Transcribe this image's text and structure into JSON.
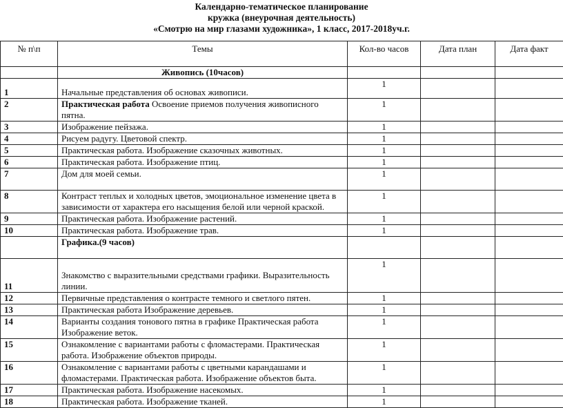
{
  "document": {
    "title_lines": [
      "Календарно-тематическое планирование",
      "кружка (внеурочная деятельность)",
      "«Смотрю на мир глазами художника», 1 класс, 2017-2018уч.г."
    ],
    "table": {
      "headers": {
        "num": "№ п\\п",
        "topic": "Темы",
        "hours": "Кол-во часов",
        "date_plan": "Дата план",
        "date_fact": "Дата факт"
      },
      "rows": [
        {
          "type": "section",
          "topic": "Живопись (10часов)"
        },
        {
          "num": "1",
          "topic": "Начальные представления об основах живописи.",
          "hours": "1"
        },
        {
          "num": "2",
          "topic_bold": "Практическая работа",
          "topic": " Освоение приемов получения живописного пятна.",
          "hours": "1"
        },
        {
          "num": "3",
          "topic": "Изображение пейзажа.",
          "hours": "1"
        },
        {
          "num": "4",
          "topic": "Рисуем радугу. Цветовой спектр.",
          "hours": "1"
        },
        {
          "num": "5",
          "topic": "Практическая работа. Изображение сказочных животных.",
          "hours": "1"
        },
        {
          "num": "6",
          "topic": "Практическая работа. Изображение птиц.",
          "hours": "1"
        },
        {
          "num": "7",
          "topic": "Дом для моей семьи.",
          "hours": "1"
        },
        {
          "num": "8",
          "topic": "Контраст теплых и холодных цветов, эмоциональное изменение цвета в зависимости от характера его насыщения белой или черной краской.",
          "hours": "1"
        },
        {
          "num": "9",
          "topic": "Практическая работа. Изображение растений.",
          "hours": "1"
        },
        {
          "num": "10",
          "topic": "Практическая работа. Изображение трав.",
          "hours": "1"
        },
        {
          "type": "section",
          "topic": "Графика.(9 часов)"
        },
        {
          "num": "11",
          "topic": "Знакомство с выразительными средствами графики. Выразительность линии.",
          "hours": "1"
        },
        {
          "num": "12",
          "topic": "Первичные представления о контрасте темного и светлого пятен.",
          "hours": "1"
        },
        {
          "num": "13",
          "topic": "Практическая работа Изображение деревьев.",
          "hours": "1"
        },
        {
          "num": "14",
          "topic": "Варианты создания тонового пятна в графике Практическая работа Изображение веток.",
          "hours": "1"
        },
        {
          "num": "15",
          "topic": "Ознакомление с вариантами работы с фломастерами. Практическая работа. Изображение объектов природы.",
          "hours": "1"
        },
        {
          "num": "16",
          "topic": "Ознакомление с вариантами работы с цветными карандашами и фломастерами. Практическая работа. Изображение объектов быта.",
          "hours": "1"
        },
        {
          "num": "17",
          "topic": "Практическая работа. Изображение насекомых.",
          "hours": "1"
        },
        {
          "num": "18",
          "topic": "Практическая работа. Изображение тканей.",
          "hours": "1"
        }
      ]
    }
  }
}
